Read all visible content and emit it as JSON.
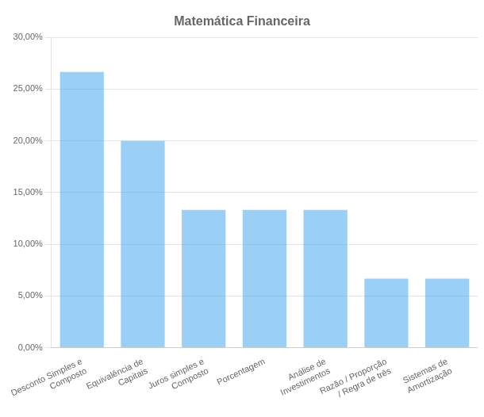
{
  "chart_data": {
    "type": "bar",
    "title": "Matemática Financeira",
    "categories": [
      "Desconto Simples e\nComposto",
      "Equivalência de\nCapitais",
      "Juros simples e\nComposto",
      "Porcentagem",
      "Análise de\nInvestimentos",
      "Razão / Proporção\n/ Regra de três",
      "Sistemas de\nAmortização"
    ],
    "values": [
      26.67,
      20.0,
      13.33,
      13.33,
      13.33,
      6.67,
      6.67
    ],
    "ylim": [
      0,
      30
    ],
    "yticks": [
      {
        "value": 0,
        "label": "0,00%"
      },
      {
        "value": 5,
        "label": "5,00%"
      },
      {
        "value": 10,
        "label": "10,00%"
      },
      {
        "value": 15,
        "label": "15,00%"
      },
      {
        "value": 20,
        "label": "20,00%"
      },
      {
        "value": 25,
        "label": "25,00%"
      },
      {
        "value": 30,
        "label": "30,00%"
      }
    ],
    "grid": true
  }
}
